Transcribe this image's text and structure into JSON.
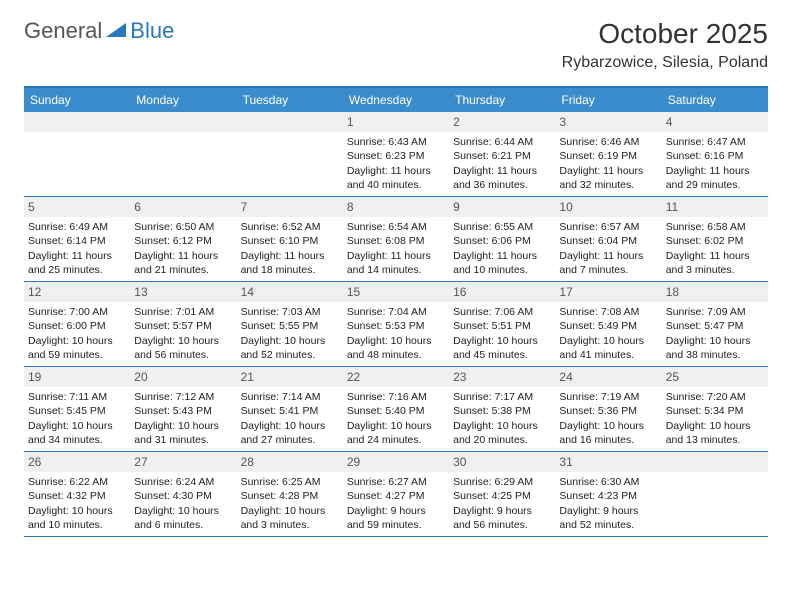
{
  "logo": {
    "text1": "General",
    "text2": "Blue"
  },
  "title": "October 2025",
  "location": "Rybarzowice, Silesia, Poland",
  "colors": {
    "header_bar": "#3b8ccc",
    "border": "#2878bd",
    "daynum_bg": "#eef0f2",
    "text": "#333333",
    "logo_blue": "#2878bd"
  },
  "weekdays": [
    "Sunday",
    "Monday",
    "Tuesday",
    "Wednesday",
    "Thursday",
    "Friday",
    "Saturday"
  ],
  "weeks": [
    [
      {
        "n": "",
        "sr": "",
        "ss": "",
        "dl": ""
      },
      {
        "n": "",
        "sr": "",
        "ss": "",
        "dl": ""
      },
      {
        "n": "",
        "sr": "",
        "ss": "",
        "dl": ""
      },
      {
        "n": "1",
        "sr": "Sunrise: 6:43 AM",
        "ss": "Sunset: 6:23 PM",
        "dl": "Daylight: 11 hours and 40 minutes."
      },
      {
        "n": "2",
        "sr": "Sunrise: 6:44 AM",
        "ss": "Sunset: 6:21 PM",
        "dl": "Daylight: 11 hours and 36 minutes."
      },
      {
        "n": "3",
        "sr": "Sunrise: 6:46 AM",
        "ss": "Sunset: 6:19 PM",
        "dl": "Daylight: 11 hours and 32 minutes."
      },
      {
        "n": "4",
        "sr": "Sunrise: 6:47 AM",
        "ss": "Sunset: 6:16 PM",
        "dl": "Daylight: 11 hours and 29 minutes."
      }
    ],
    [
      {
        "n": "5",
        "sr": "Sunrise: 6:49 AM",
        "ss": "Sunset: 6:14 PM",
        "dl": "Daylight: 11 hours and 25 minutes."
      },
      {
        "n": "6",
        "sr": "Sunrise: 6:50 AM",
        "ss": "Sunset: 6:12 PM",
        "dl": "Daylight: 11 hours and 21 minutes."
      },
      {
        "n": "7",
        "sr": "Sunrise: 6:52 AM",
        "ss": "Sunset: 6:10 PM",
        "dl": "Daylight: 11 hours and 18 minutes."
      },
      {
        "n": "8",
        "sr": "Sunrise: 6:54 AM",
        "ss": "Sunset: 6:08 PM",
        "dl": "Daylight: 11 hours and 14 minutes."
      },
      {
        "n": "9",
        "sr": "Sunrise: 6:55 AM",
        "ss": "Sunset: 6:06 PM",
        "dl": "Daylight: 11 hours and 10 minutes."
      },
      {
        "n": "10",
        "sr": "Sunrise: 6:57 AM",
        "ss": "Sunset: 6:04 PM",
        "dl": "Daylight: 11 hours and 7 minutes."
      },
      {
        "n": "11",
        "sr": "Sunrise: 6:58 AM",
        "ss": "Sunset: 6:02 PM",
        "dl": "Daylight: 11 hours and 3 minutes."
      }
    ],
    [
      {
        "n": "12",
        "sr": "Sunrise: 7:00 AM",
        "ss": "Sunset: 6:00 PM",
        "dl": "Daylight: 10 hours and 59 minutes."
      },
      {
        "n": "13",
        "sr": "Sunrise: 7:01 AM",
        "ss": "Sunset: 5:57 PM",
        "dl": "Daylight: 10 hours and 56 minutes."
      },
      {
        "n": "14",
        "sr": "Sunrise: 7:03 AM",
        "ss": "Sunset: 5:55 PM",
        "dl": "Daylight: 10 hours and 52 minutes."
      },
      {
        "n": "15",
        "sr": "Sunrise: 7:04 AM",
        "ss": "Sunset: 5:53 PM",
        "dl": "Daylight: 10 hours and 48 minutes."
      },
      {
        "n": "16",
        "sr": "Sunrise: 7:06 AM",
        "ss": "Sunset: 5:51 PM",
        "dl": "Daylight: 10 hours and 45 minutes."
      },
      {
        "n": "17",
        "sr": "Sunrise: 7:08 AM",
        "ss": "Sunset: 5:49 PM",
        "dl": "Daylight: 10 hours and 41 minutes."
      },
      {
        "n": "18",
        "sr": "Sunrise: 7:09 AM",
        "ss": "Sunset: 5:47 PM",
        "dl": "Daylight: 10 hours and 38 minutes."
      }
    ],
    [
      {
        "n": "19",
        "sr": "Sunrise: 7:11 AM",
        "ss": "Sunset: 5:45 PM",
        "dl": "Daylight: 10 hours and 34 minutes."
      },
      {
        "n": "20",
        "sr": "Sunrise: 7:12 AM",
        "ss": "Sunset: 5:43 PM",
        "dl": "Daylight: 10 hours and 31 minutes."
      },
      {
        "n": "21",
        "sr": "Sunrise: 7:14 AM",
        "ss": "Sunset: 5:41 PM",
        "dl": "Daylight: 10 hours and 27 minutes."
      },
      {
        "n": "22",
        "sr": "Sunrise: 7:16 AM",
        "ss": "Sunset: 5:40 PM",
        "dl": "Daylight: 10 hours and 24 minutes."
      },
      {
        "n": "23",
        "sr": "Sunrise: 7:17 AM",
        "ss": "Sunset: 5:38 PM",
        "dl": "Daylight: 10 hours and 20 minutes."
      },
      {
        "n": "24",
        "sr": "Sunrise: 7:19 AM",
        "ss": "Sunset: 5:36 PM",
        "dl": "Daylight: 10 hours and 16 minutes."
      },
      {
        "n": "25",
        "sr": "Sunrise: 7:20 AM",
        "ss": "Sunset: 5:34 PM",
        "dl": "Daylight: 10 hours and 13 minutes."
      }
    ],
    [
      {
        "n": "26",
        "sr": "Sunrise: 6:22 AM",
        "ss": "Sunset: 4:32 PM",
        "dl": "Daylight: 10 hours and 10 minutes."
      },
      {
        "n": "27",
        "sr": "Sunrise: 6:24 AM",
        "ss": "Sunset: 4:30 PM",
        "dl": "Daylight: 10 hours and 6 minutes."
      },
      {
        "n": "28",
        "sr": "Sunrise: 6:25 AM",
        "ss": "Sunset: 4:28 PM",
        "dl": "Daylight: 10 hours and 3 minutes."
      },
      {
        "n": "29",
        "sr": "Sunrise: 6:27 AM",
        "ss": "Sunset: 4:27 PM",
        "dl": "Daylight: 9 hours and 59 minutes."
      },
      {
        "n": "30",
        "sr": "Sunrise: 6:29 AM",
        "ss": "Sunset: 4:25 PM",
        "dl": "Daylight: 9 hours and 56 minutes."
      },
      {
        "n": "31",
        "sr": "Sunrise: 6:30 AM",
        "ss": "Sunset: 4:23 PM",
        "dl": "Daylight: 9 hours and 52 minutes."
      },
      {
        "n": "",
        "sr": "",
        "ss": "",
        "dl": ""
      }
    ]
  ]
}
